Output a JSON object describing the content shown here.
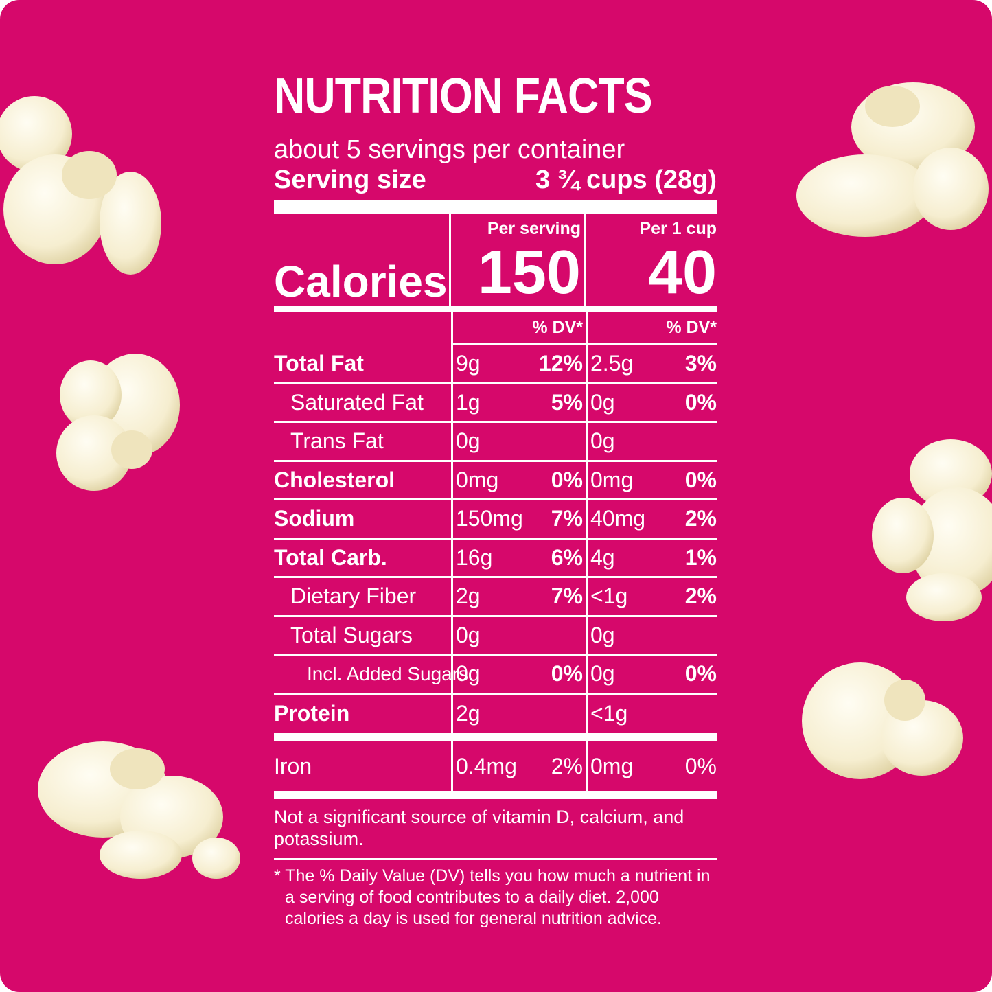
{
  "title": "NUTRITION FACTS",
  "servings_per_container": "about 5 servings per container",
  "serving_size": {
    "label": "Serving size",
    "value": "3 ¾ cups (28g)"
  },
  "calories": {
    "label": "Calories",
    "col1_header": "Per serving",
    "col1_value": "150",
    "col2_header": "Per 1 cup",
    "col2_value": "40"
  },
  "dv_header": {
    "col1": "% DV*",
    "col2": "% DV*"
  },
  "nutrients": [
    {
      "name": "Total Fat",
      "a1": "9g",
      "p1": "12%",
      "a2": "2.5g",
      "p2": "3%"
    },
    {
      "name": "Saturated Fat",
      "a1": "1g",
      "p1": "5%",
      "a2": "0g",
      "p2": "0%"
    },
    {
      "name": "Trans Fat",
      "a1": "0g",
      "p1": "",
      "a2": "0g",
      "p2": ""
    },
    {
      "name": "Cholesterol",
      "a1": "0mg",
      "p1": "0%",
      "a2": "0mg",
      "p2": "0%"
    },
    {
      "name": "Sodium",
      "a1": "150mg",
      "p1": "7%",
      "a2": "40mg",
      "p2": "2%"
    },
    {
      "name": "Total Carb.",
      "a1": "16g",
      "p1": "6%",
      "a2": "4g",
      "p2": "1%"
    },
    {
      "name": "Dietary Fiber",
      "a1": "2g",
      "p1": "7%",
      "a2": "<1g",
      "p2": "2%"
    },
    {
      "name": "Total Sugars",
      "a1": "0g",
      "p1": "",
      "a2": "0g",
      "p2": ""
    },
    {
      "name": "Incl. Added Sugars",
      "a1": "0g",
      "p1": "0%",
      "a2": "0g",
      "p2": "0%"
    },
    {
      "name": "Protein",
      "a1": "2g",
      "p1": "",
      "a2": "<1g",
      "p2": ""
    },
    {
      "name": "Iron",
      "a1": "0.4mg",
      "p1": "2%",
      "a2": "0mg",
      "p2": "0%"
    }
  ],
  "not_significant": "Not a significant source of vitamin D, calcium, and potassium.",
  "footnote": "* The % Daily Value (DV) tells you how much a nutrient in a serving of food contributes to a daily diet. 2,000 calories a day is used for general nutrition advice.",
  "colors": {
    "background": "#d6086b",
    "text": "#ffffff",
    "popcorn": "#f7f0d6",
    "popcorn_shade": "#e2d6a8"
  }
}
